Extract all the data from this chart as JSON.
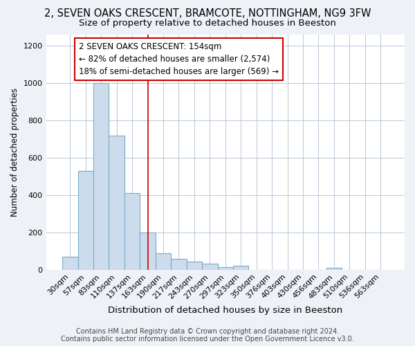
{
  "title1": "2, SEVEN OAKS CRESCENT, BRAMCOTE, NOTTINGHAM, NG9 3FW",
  "title2": "Size of property relative to detached houses in Beeston",
  "xlabel": "Distribution of detached houses by size in Beeston",
  "ylabel": "Number of detached properties",
  "categories": [
    "30sqm",
    "57sqm",
    "83sqm",
    "110sqm",
    "137sqm",
    "163sqm",
    "190sqm",
    "217sqm",
    "243sqm",
    "270sqm",
    "297sqm",
    "323sqm",
    "350sqm",
    "376sqm",
    "403sqm",
    "430sqm",
    "456sqm",
    "483sqm",
    "510sqm",
    "536sqm",
    "563sqm"
  ],
  "values": [
    70,
    530,
    1000,
    720,
    410,
    200,
    90,
    58,
    42,
    32,
    15,
    20,
    0,
    0,
    0,
    0,
    0,
    12,
    0,
    0,
    0
  ],
  "bar_color": "#ccdcec",
  "bar_edge_color": "#7aaac8",
  "red_line_x": 5.0,
  "annotation_line1": "2 SEVEN OAKS CRESCENT: 154sqm",
  "annotation_line2": "← 82% of detached houses are smaller (2,574)",
  "annotation_line3": "18% of semi-detached houses are larger (569) →",
  "footer1": "Contains HM Land Registry data © Crown copyright and database right 2024.",
  "footer2": "Contains public sector information licensed under the Open Government Licence v3.0.",
  "ylim": [
    0,
    1260
  ],
  "yticks": [
    0,
    200,
    400,
    600,
    800,
    1000,
    1200
  ],
  "bg_color": "#ffffff",
  "plot_bg_color": "#ffffff",
  "outer_bg_color": "#eef2f7",
  "grid_color": "#b8c8d8",
  "title1_fontsize": 10.5,
  "title2_fontsize": 9.5,
  "xlabel_fontsize": 9.5,
  "ylabel_fontsize": 8.5,
  "tick_fontsize": 8,
  "annotation_fontsize": 8.5,
  "footer_fontsize": 7
}
